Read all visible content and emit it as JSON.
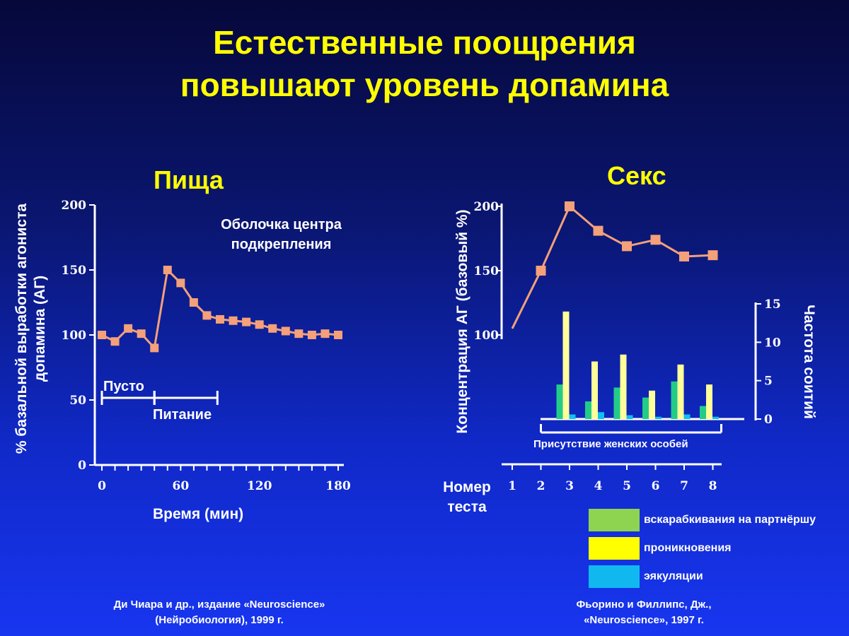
{
  "title": {
    "line1": "Естественные поощрения",
    "line2": "повышают уровень допамина"
  },
  "colors": {
    "title": "#ffff00",
    "line": "#f4a07a",
    "marker": "#f4a07a",
    "mounts": "#33cc77",
    "intromissions": "#ffff99",
    "ejaculations": "#22ccee"
  },
  "chart_data": [
    {
      "type": "line",
      "title": "Пища",
      "annotation": "Оболочка центра подкрепления",
      "ylabel": "% базальной выработки агониста допамина (АГ)",
      "xlabel": "Время (мин)",
      "xlim": [
        0,
        180
      ],
      "ylim": [
        0,
        200
      ],
      "xticks": [
        0,
        60,
        120,
        180
      ],
      "yticks": [
        0,
        50,
        100,
        150,
        200
      ],
      "x": [
        0,
        10,
        20,
        30,
        40,
        50,
        60,
        70,
        80,
        90,
        100,
        110,
        120,
        130,
        140,
        150,
        160,
        170,
        180
      ],
      "y": [
        100,
        95,
        105,
        101,
        90,
        150,
        140,
        125,
        115,
        112,
        111,
        110,
        108,
        105,
        103,
        101,
        100,
        101,
        100
      ],
      "periods": [
        {
          "label": "Пусто",
          "start": 0,
          "end": 40
        },
        {
          "label": "Питание",
          "start": 40,
          "end": 88
        }
      ]
    },
    {
      "type": "line+bar",
      "title": "Секс",
      "ylabel": "Концентрация АГ (базовый %)",
      "ylabel_right": "Частота соитий",
      "xlabel": "Номер теста",
      "categories": [
        "1",
        "2",
        "3",
        "4",
        "5",
        "6",
        "7",
        "8"
      ],
      "line": {
        "x": [
          1,
          2,
          3,
          4,
          5,
          6,
          7,
          8
        ],
        "y": [
          105,
          150,
          200,
          181,
          169,
          174,
          161,
          162
        ],
        "markers": [
          false,
          true,
          true,
          true,
          true,
          true,
          true,
          true
        ]
      },
      "ylim": [
        100,
        200
      ],
      "yticks": [
        100,
        150,
        200
      ],
      "ylim_right": [
        0,
        15
      ],
      "yticks_right": [
        0,
        5,
        10,
        15
      ],
      "period_label": "Присутствие женских особей",
      "period": {
        "start": 2,
        "end": 8
      },
      "series": [
        {
          "name": "вскарабкивания на партнёршу",
          "values": [
            0,
            0,
            4.5,
            2.3,
            4.1,
            2.8,
            4.9,
            1.7
          ]
        },
        {
          "name": "проникновения",
          "values": [
            0,
            0,
            14.0,
            7.5,
            8.4,
            3.7,
            7.1,
            4.5
          ]
        },
        {
          "name": "эякуляции",
          "values": [
            0,
            0,
            0.6,
            0.9,
            0.5,
            0.3,
            0.6,
            0.3
          ]
        }
      ]
    }
  ],
  "citations": {
    "left_line1": "Ди Чиара и др., издание «Neuroscience»",
    "left_line2": "(Нейробиология), 1999 г.",
    "right_line1": "Фьорино и Филлипс, Дж.,",
    "right_line2": "«Neuroscience», 1997 г."
  }
}
